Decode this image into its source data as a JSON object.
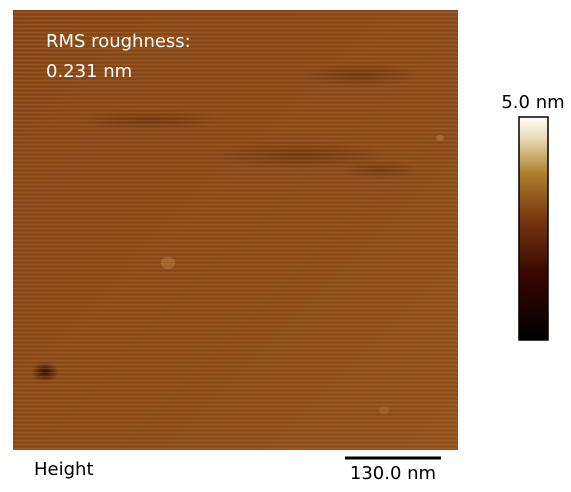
{
  "image": {
    "annotation": [
      "RMS roughness:",
      "0.231 nm"
    ]
  },
  "colorbar": {
    "max_label": "5.0 nm"
  },
  "caption": "Height",
  "scale_bar": {
    "label": "130.0 nm"
  }
}
